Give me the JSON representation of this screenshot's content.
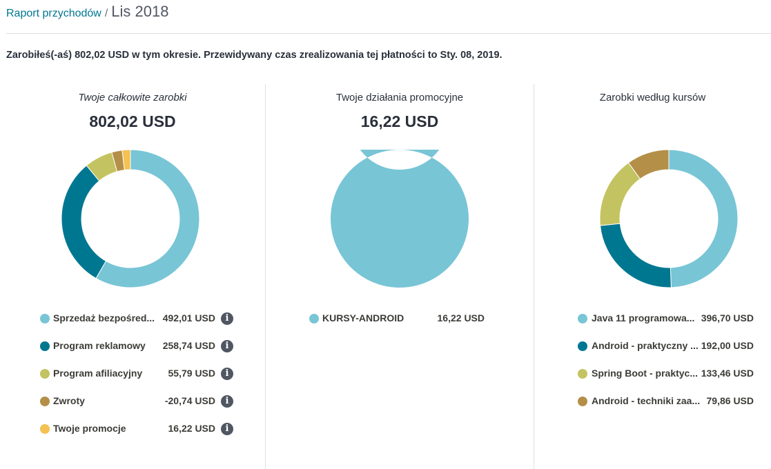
{
  "breadcrumb": {
    "link": "Raport przychodów",
    "separator": "/",
    "current": "Lis 2018"
  },
  "summary": "Zarobiłeś(-aś) 802,02 USD w tym okresie. Przewidywany czas zrealizowania tej płatności to Sty. 08, 2019.",
  "colors": {
    "light_blue": "#78c5d6",
    "teal": "#007791",
    "olive": "#c4c361",
    "brown": "#b48f48",
    "yellow": "#f4c152"
  },
  "panels": [
    {
      "title": "Twoje całkowite zarobki",
      "total": "802,02 USD",
      "items": [
        {
          "label": "Sprzedaż bezpośred...",
          "value": "492,01 USD",
          "color": "#78c5d6",
          "icon": "info-icon"
        },
        {
          "label": "Program reklamowy",
          "value": "258,74 USD",
          "color": "#007791",
          "icon": "info-icon"
        },
        {
          "label": "Program afiliacyjny",
          "value": "55,79 USD",
          "color": "#c4c361",
          "icon": "info-icon"
        },
        {
          "label": "Zwroty",
          "value": "-20,74 USD",
          "color": "#b48f48",
          "icon": "info-icon"
        },
        {
          "label": "Twoje promocje",
          "value": "16,22 USD",
          "color": "#f4c152",
          "icon": "info-icon"
        }
      ]
    },
    {
      "title": "Twoje działania promocyjne",
      "total": "16,22 USD",
      "items": [
        {
          "label": "KURSY-ANDROID",
          "value": "16,22 USD",
          "color": "#78c5d6"
        }
      ]
    },
    {
      "title": "Zarobki według kursów",
      "total": "",
      "items": [
        {
          "label": "Java 11 programowa...",
          "value": "396,70 USD",
          "color": "#78c5d6"
        },
        {
          "label": "Android - praktyczny ...",
          "value": "192,00 USD",
          "color": "#007791"
        },
        {
          "label": "Spring Boot - praktyc...",
          "value": "133,46 USD",
          "color": "#c4c361"
        },
        {
          "label": "Android - techniki zaa...",
          "value": "79,86 USD",
          "color": "#b48f48"
        }
      ]
    }
  ],
  "chart_data": [
    {
      "type": "pie",
      "categories": [
        "Sprzedaż bezpośred...",
        "Program reklamowy",
        "Program afiliacyjny",
        "Zwroty",
        "Twoje promocje"
      ],
      "values": [
        492.01,
        258.74,
        55.79,
        20.74,
        16.22
      ],
      "colors": [
        "#78c5d6",
        "#007791",
        "#c4c361",
        "#b48f48",
        "#f4c152"
      ],
      "style": "donut"
    },
    {
      "type": "pie",
      "categories": [
        "KURSY-ANDROID"
      ],
      "values": [
        16.22
      ],
      "colors": [
        "#78c5d6"
      ],
      "style": "donut"
    },
    {
      "type": "pie",
      "categories": [
        "Java 11 programowa...",
        "Android - praktyczny ...",
        "Spring Boot - praktyc...",
        "Android - techniki zaa..."
      ],
      "values": [
        396.7,
        192.0,
        133.46,
        79.86
      ],
      "colors": [
        "#78c5d6",
        "#007791",
        "#c4c361",
        "#b48f48"
      ],
      "style": "donut"
    }
  ]
}
